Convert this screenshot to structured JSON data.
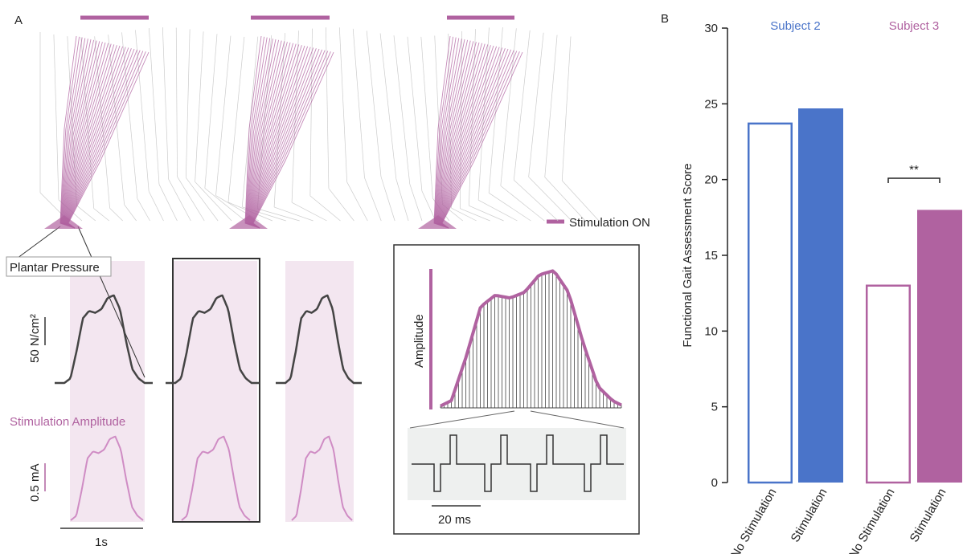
{
  "panel_a": {
    "label": "A",
    "legend": "Stimulation ON",
    "pressure_label": "Plantar Pressure",
    "pressure_scale": "50 N/cm²",
    "stim_label": "Stimulation Amplitude",
    "stim_scale": "0.5 mA",
    "time_scale": "1s",
    "inset_y_label": "Amplitude",
    "inset_time_scale": "20 ms"
  },
  "chart_data": {
    "type": "bar",
    "panel_label": "B",
    "y_label": "Functional Gait Assessment Score",
    "ylim": [
      0,
      30
    ],
    "yticks": [
      0,
      5,
      10,
      15,
      20,
      25,
      30
    ],
    "groups": [
      {
        "name": "Subject 2",
        "color": "#4a74c9",
        "categories": [
          "No Stimulation",
          "Stimulation"
        ],
        "values": [
          23.7,
          24.7
        ]
      },
      {
        "name": "Subject 3",
        "color": "#b062a0",
        "categories": [
          "No Stimulation",
          "Stimulation"
        ],
        "values": [
          13.0,
          18.0
        ],
        "annotation": "**"
      }
    ]
  }
}
